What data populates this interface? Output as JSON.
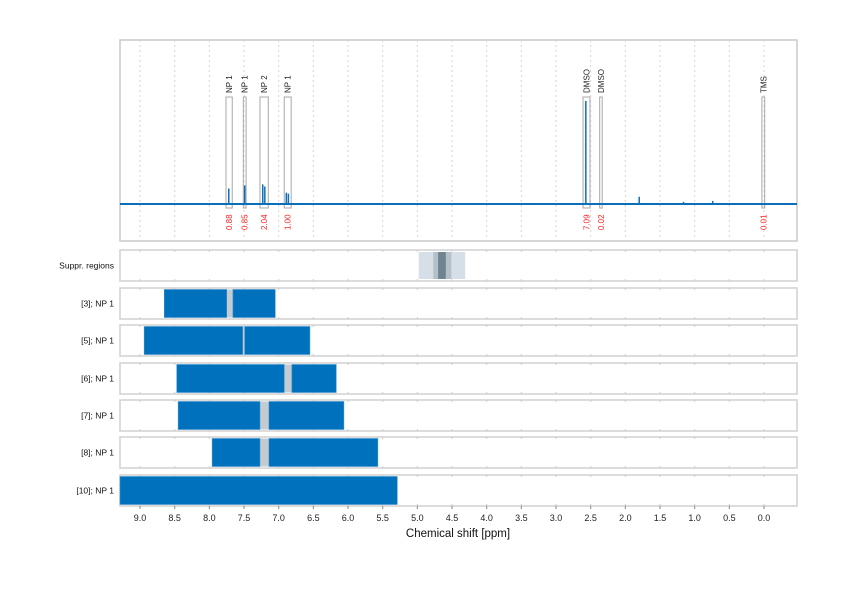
{
  "chart_data": {
    "type": "line",
    "xlabel": "Chemical shift [ppm]",
    "xlim": [
      9.29,
      -0.48
    ],
    "x_reversed": true,
    "grid": true,
    "x_ticks": [
      "9.0",
      "8.5",
      "8.0",
      "7.5",
      "7.0",
      "6.5",
      "6.0",
      "5.5",
      "5.0",
      "4.5",
      "4.0",
      "3.5",
      "3.0",
      "2.5",
      "2.0",
      "1.5",
      "1.0",
      "0.5",
      "0.0"
    ],
    "spectrum": {
      "color": "#0a6fb8",
      "peaks": [
        {
          "ppm": 7.72,
          "intensity": 0.15
        },
        {
          "ppm": 7.49,
          "intensity": 0.18
        },
        {
          "ppm": 7.23,
          "intensity": 0.19
        },
        {
          "ppm": 7.2,
          "intensity": 0.17
        },
        {
          "ppm": 6.89,
          "intensity": 0.11
        },
        {
          "ppm": 6.86,
          "intensity": 0.1
        },
        {
          "ppm": 2.57,
          "intensity": 1.0
        },
        {
          "ppm": 1.8,
          "intensity": 0.07
        },
        {
          "ppm": 1.16,
          "intensity": 0.02
        },
        {
          "ppm": 0.74,
          "intensity": 0.03
        },
        {
          "ppm": 3.4,
          "intensity": 0.01
        }
      ]
    },
    "regions": [
      {
        "label": "NP 1",
        "from": 7.76,
        "to": 7.67,
        "integral": "0.88"
      },
      {
        "label": "NP 1",
        "from": 7.51,
        "to": 7.47,
        "integral": "0.85"
      },
      {
        "label": "NP 2",
        "from": 7.27,
        "to": 7.15,
        "integral": "2.04"
      },
      {
        "label": "NP 1",
        "from": 6.92,
        "to": 6.82,
        "integral": "1.00"
      },
      {
        "label": "DMSO",
        "from": 2.61,
        "to": 2.51,
        "integral": "7.09"
      },
      {
        "label": "DMSO",
        "from": 2.37,
        "to": 2.34,
        "integral": "0.02"
      },
      {
        "label": "TMS",
        "from": 0.03,
        "to": -0.01,
        "integral": "0.01"
      }
    ],
    "suppression": {
      "label": "Suppr. regions",
      "bands": [
        {
          "from": 4.98,
          "to": 4.31,
          "color": "#d6dfe7"
        },
        {
          "from": 4.77,
          "to": 4.51,
          "color": "#b3c0c8"
        },
        {
          "from": 4.7,
          "to": 4.59,
          "color": "#6f8390"
        }
      ]
    },
    "tracks": [
      {
        "label": "[3]; NP 1",
        "segments": [
          [
            8.65,
            7.75
          ],
          [
            7.66,
            7.05
          ]
        ]
      },
      {
        "label": "[5]; NP 1",
        "segments": [
          [
            8.94,
            7.52
          ],
          [
            7.49,
            6.55
          ]
        ]
      },
      {
        "label": "[6]; NP 1",
        "segments": [
          [
            8.47,
            6.92
          ],
          [
            6.81,
            6.17
          ]
        ]
      },
      {
        "label": "[7]; NP 1",
        "segments": [
          [
            8.45,
            7.27
          ],
          [
            7.14,
            6.06
          ]
        ]
      },
      {
        "label": "[8]; NP 1",
        "segments": [
          [
            7.96,
            7.27
          ],
          [
            7.14,
            5.57
          ]
        ]
      },
      {
        "label": "[10]; NP 1",
        "segments": [
          [
            9.29,
            5.29
          ]
        ]
      }
    ],
    "colors": {
      "bar": "#0071bc",
      "gap": "#c4ccd2",
      "integral": "#ff2020"
    }
  }
}
